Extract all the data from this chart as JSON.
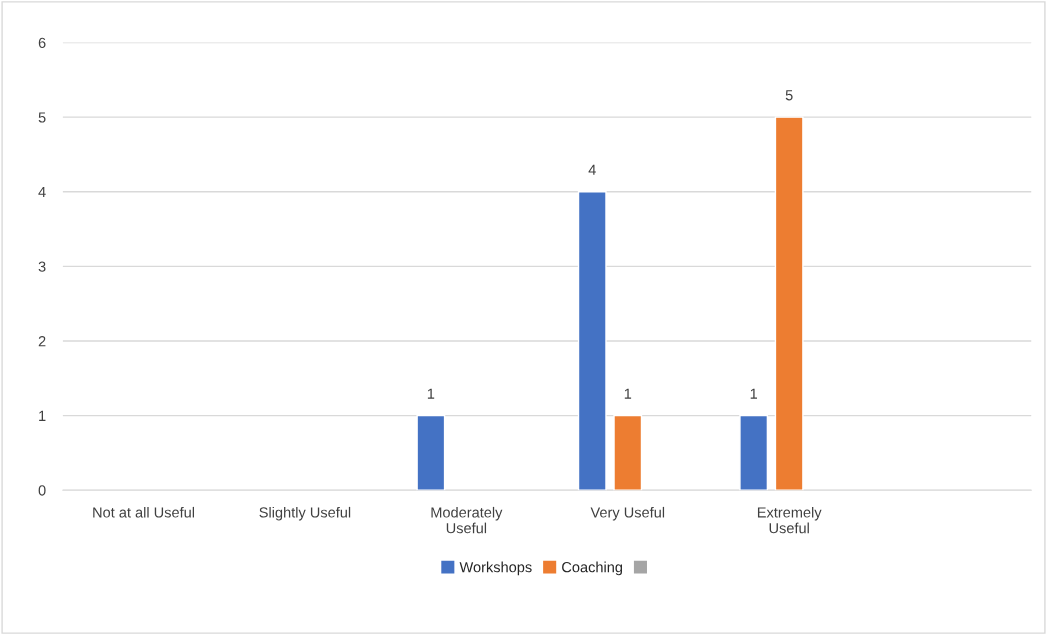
{
  "chart_data": {
    "type": "bar",
    "categories": [
      "Not at all Useful",
      "Slightly Useful",
      "Moderately Useful",
      "Very Useful",
      "Extremely Useful",
      null
    ],
    "series": [
      {
        "name": "Workshops",
        "color": "#4472c4",
        "values": [
          null,
          null,
          1,
          4,
          1,
          null
        ]
      },
      {
        "name": "Coaching",
        "color": "#ed7d31",
        "values": [
          null,
          null,
          null,
          1,
          5,
          null
        ]
      },
      {
        "color": "#a5a5a5",
        "values": [
          null,
          null,
          null,
          null,
          null,
          null
        ]
      }
    ],
    "ylim": [
      0,
      6
    ],
    "yticks": [
      0,
      1,
      2,
      3,
      4,
      5,
      6
    ],
    "grid": "y",
    "legend": "bottom",
    "data_labels": true
  }
}
